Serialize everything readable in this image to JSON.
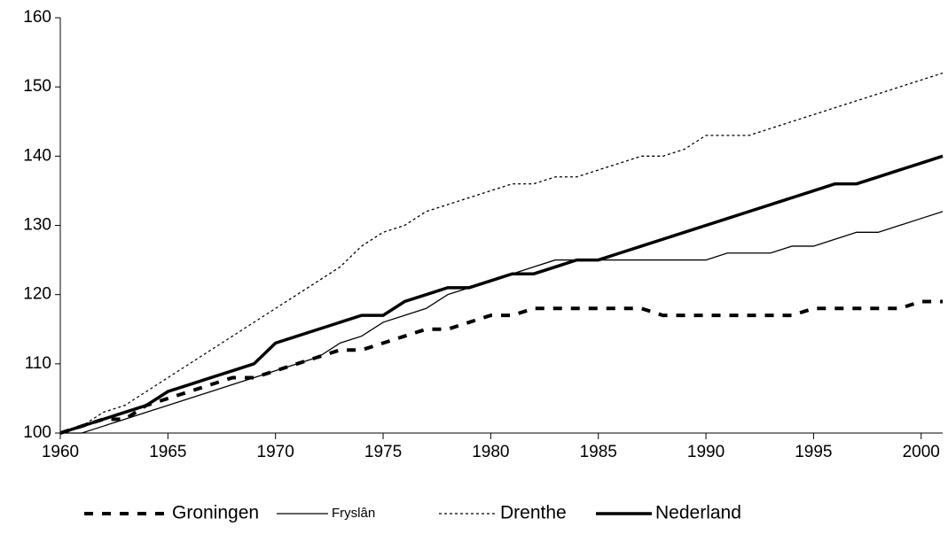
{
  "chart_data": {
    "type": "line",
    "x": [
      1960,
      1961,
      1962,
      1963,
      1964,
      1965,
      1966,
      1967,
      1968,
      1969,
      1970,
      1971,
      1972,
      1973,
      1974,
      1975,
      1976,
      1977,
      1978,
      1979,
      1980,
      1981,
      1982,
      1983,
      1984,
      1985,
      1986,
      1987,
      1988,
      1989,
      1990,
      1991,
      1992,
      1993,
      1994,
      1995,
      1996,
      1997,
      1998,
      1999,
      2000,
      2001
    ],
    "series": [
      {
        "name": "Groningen",
        "color": "#000000",
        "linestyle": "dashed",
        "linewidth": 4,
        "values": [
          100,
          101,
          102,
          102,
          104,
          105,
          106,
          107,
          108,
          108,
          109,
          110,
          111,
          112,
          112,
          113,
          114,
          115,
          115,
          116,
          117,
          117,
          118,
          118,
          118,
          118,
          118,
          118,
          117,
          117,
          117,
          117,
          117,
          117,
          117,
          118,
          118,
          118,
          118,
          118,
          119,
          119
        ]
      },
      {
        "name": "Fryslân",
        "color": "#000000",
        "linestyle": "solid",
        "linewidth": 1.3,
        "values": [
          100,
          100,
          101,
          102,
          103,
          104,
          105,
          106,
          107,
          108,
          109,
          110,
          111,
          113,
          114,
          116,
          117,
          118,
          120,
          121,
          122,
          123,
          124,
          125,
          125,
          125,
          125,
          125,
          125,
          125,
          125,
          126,
          126,
          126,
          127,
          127,
          128,
          129,
          129,
          130,
          131,
          132
        ]
      },
      {
        "name": "Drenthe",
        "color": "#000000",
        "linestyle": "dotted",
        "linewidth": 1.3,
        "values": [
          100,
          101,
          103,
          104,
          106,
          108,
          110,
          112,
          114,
          116,
          118,
          120,
          122,
          124,
          127,
          129,
          130,
          132,
          133,
          134,
          135,
          136,
          136,
          137,
          137,
          138,
          139,
          140,
          140,
          141,
          143,
          143,
          143,
          144,
          145,
          146,
          147,
          148,
          149,
          150,
          151,
          152
        ]
      },
      {
        "name": "Nederland",
        "color": "#000000",
        "linestyle": "solid",
        "linewidth": 3.5,
        "values": [
          100,
          101,
          102,
          103,
          104,
          106,
          107,
          108,
          109,
          110,
          113,
          114,
          115,
          116,
          117,
          117,
          119,
          120,
          121,
          121,
          122,
          123,
          123,
          124,
          125,
          125,
          126,
          127,
          128,
          129,
          130,
          131,
          132,
          133,
          134,
          135,
          136,
          136,
          137,
          138,
          139,
          140
        ]
      }
    ],
    "xlim": [
      1960,
      2001
    ],
    "xticks": [
      1960,
      1965,
      1970,
      1975,
      1980,
      1985,
      1990,
      1995,
      2000
    ],
    "ylim": [
      100,
      160
    ],
    "yticks": [
      100,
      110,
      120,
      130,
      140,
      150,
      160
    ],
    "legend": "bottom"
  }
}
